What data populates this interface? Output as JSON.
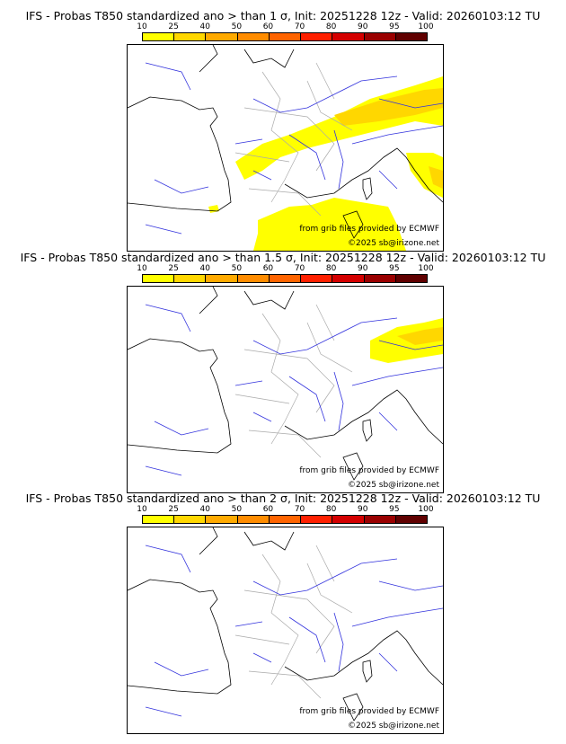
{
  "colorbar": {
    "ticks": [
      "10",
      "25",
      "40",
      "50",
      "60",
      "70",
      "80",
      "90",
      "95",
      "100"
    ],
    "colors": [
      "#ffff00",
      "#ffd700",
      "#ffaa00",
      "#ff8c00",
      "#ff6400",
      "#ff2000",
      "#d40000",
      "#9a0000",
      "#600000"
    ]
  },
  "panels": [
    {
      "title": "IFS - Probas T850  standardized ano > than 1 σ, Init: 20251228 12z - Valid: 20260103:12 TU",
      "credit_source": "from grib files provided by ECMWF",
      "credit_copyright": "©2025 sb@irizone.net"
    },
    {
      "title": "IFS - Probas T850  standardized ano > than 1.5 σ, Init: 20251228 12z - Valid: 20260103:12 TU",
      "credit_source": "from grib files provided by ECMWF",
      "credit_copyright": "©2025 sb@irizone.net"
    },
    {
      "title": "IFS - Probas T850  standardized ano > than 2 σ, Init: 20251228 12z - Valid: 20260103:12 TU",
      "credit_source": "from grib files provided by ECMWF",
      "credit_copyright": "©2025 sb@irizone.net"
    }
  ]
}
